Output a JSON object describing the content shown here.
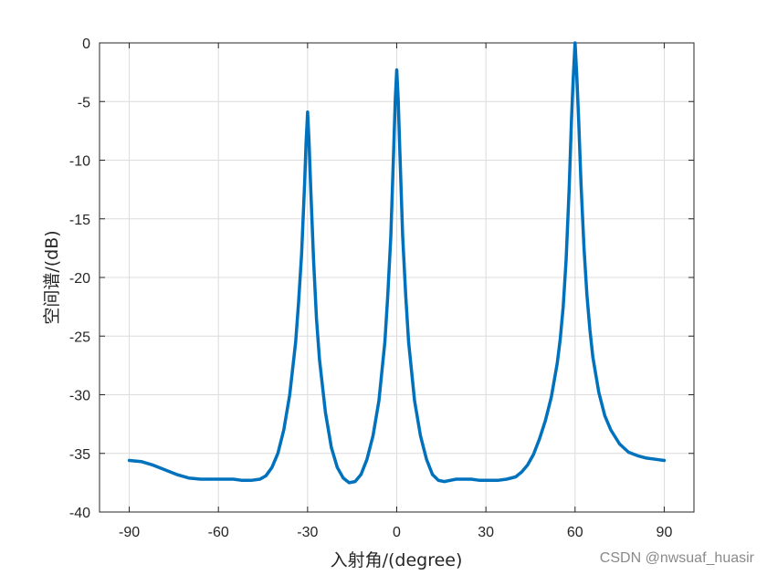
{
  "chart_data": {
    "type": "line",
    "title": "",
    "xlabel": "入射角/(degree)",
    "ylabel": "空间谱/(dB)",
    "xlim": [
      -100,
      100
    ],
    "ylim": [
      -40,
      0
    ],
    "xticks": [
      -90,
      -60,
      -30,
      0,
      30,
      60,
      90
    ],
    "yticks": [
      0,
      -5,
      -10,
      -15,
      -20,
      -25,
      -30,
      -35,
      -40
    ],
    "xtick_labels": [
      "-90",
      "-60",
      "-30",
      "0",
      "30",
      "60",
      "90"
    ],
    "ytick_labels": [
      "0",
      "-5",
      "-10",
      "-15",
      "-20",
      "-25",
      "-30",
      "-35",
      "-40"
    ],
    "grid": true,
    "line_color": "#0072BD",
    "series": [
      {
        "x": [
          -90,
          -86,
          -82,
          -78,
          -74,
          -70,
          -66,
          -62,
          -58,
          -55,
          -52,
          -49,
          -46,
          -44,
          -42,
          -40,
          -38,
          -36,
          -34,
          -33,
          -32,
          -31,
          -30.5,
          -30,
          -29.5,
          -29,
          -28,
          -27,
          -26,
          -24,
          -22,
          -20,
          -18,
          -16,
          -14,
          -12,
          -10,
          -8,
          -6,
          -4,
          -3,
          -2,
          -1,
          -0.5,
          0,
          0.5,
          1,
          2,
          3,
          4,
          6,
          8,
          10,
          12,
          14,
          16,
          18,
          20,
          22,
          25,
          28,
          31,
          34,
          37,
          40,
          42,
          44,
          46,
          48,
          50,
          52,
          54,
          55,
          56,
          57,
          58,
          58.8,
          59.4,
          60,
          60.6,
          61.2,
          62,
          63,
          64,
          65,
          66,
          68,
          70,
          72,
          75,
          78,
          81,
          84,
          87,
          90
        ],
        "y": [
          -35.6,
          -35.7,
          -36.0,
          -36.4,
          -36.8,
          -37.1,
          -37.2,
          -37.2,
          -37.2,
          -37.2,
          -37.3,
          -37.3,
          -37.2,
          -36.9,
          -36.2,
          -35.0,
          -33.0,
          -30.0,
          -25.5,
          -22.0,
          -18.0,
          -12.0,
          -8.5,
          -5.9,
          -8.5,
          -12.0,
          -18.5,
          -23.5,
          -27.0,
          -31.5,
          -34.5,
          -36.2,
          -37.1,
          -37.5,
          -37.4,
          -36.8,
          -35.5,
          -33.5,
          -30.5,
          -25.5,
          -21.5,
          -16.5,
          -9.0,
          -4.8,
          -2.3,
          -4.8,
          -9.0,
          -16.5,
          -21.5,
          -25.5,
          -30.5,
          -33.5,
          -35.5,
          -36.8,
          -37.3,
          -37.4,
          -37.3,
          -37.2,
          -37.2,
          -37.2,
          -37.3,
          -37.3,
          -37.3,
          -37.2,
          -37.0,
          -36.6,
          -36.0,
          -35.1,
          -33.8,
          -32.2,
          -30.2,
          -27.3,
          -25.3,
          -22.5,
          -18.5,
          -12.5,
          -6.5,
          -3.0,
          0.0,
          -3.0,
          -6.5,
          -12.0,
          -17.5,
          -21.5,
          -24.5,
          -26.8,
          -29.8,
          -31.8,
          -33.0,
          -34.2,
          -34.9,
          -35.2,
          -35.4,
          -35.5,
          -35.6
        ]
      }
    ]
  },
  "watermark": "CSDN @nwsuaf_huasir"
}
